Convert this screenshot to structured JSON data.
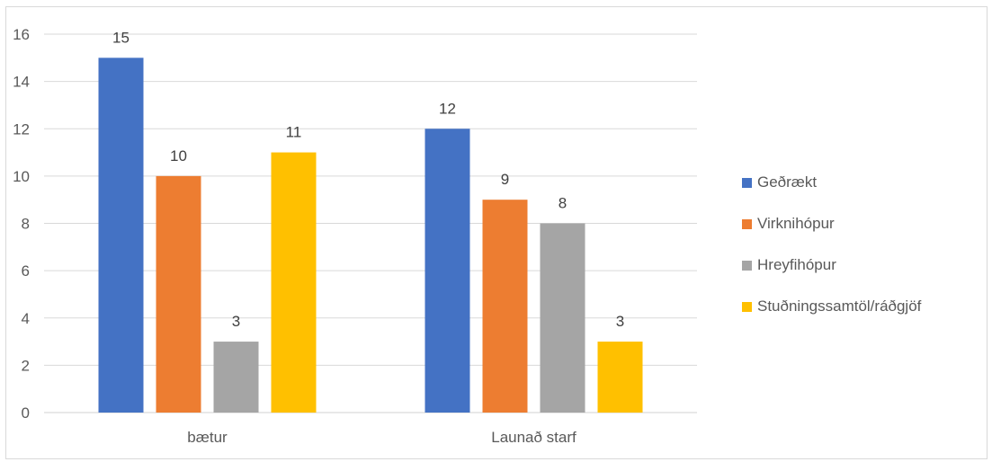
{
  "chart_data": {
    "type": "bar",
    "categories": [
      "bætur",
      "Launað starf"
    ],
    "series": [
      {
        "name": "Geðrækt",
        "values": [
          15,
          12
        ],
        "color": "#4472C4"
      },
      {
        "name": "Virknihópur",
        "values": [
          10,
          9
        ],
        "color": "#ED7D31"
      },
      {
        "name": "Hreyfihópur",
        "values": [
          3,
          8
        ],
        "color": "#A5A5A5"
      },
      {
        "name": "Stuðningssamtöl/ráðgjöf",
        "values": [
          11,
          3
        ],
        "color": "#FFC000"
      }
    ],
    "ylim": [
      0,
      16
    ],
    "yticks": [
      "0",
      "2",
      "4",
      "6",
      "8",
      "10",
      "12",
      "14",
      "16"
    ],
    "grid": true,
    "legend_position": "right",
    "data_labels": true
  }
}
